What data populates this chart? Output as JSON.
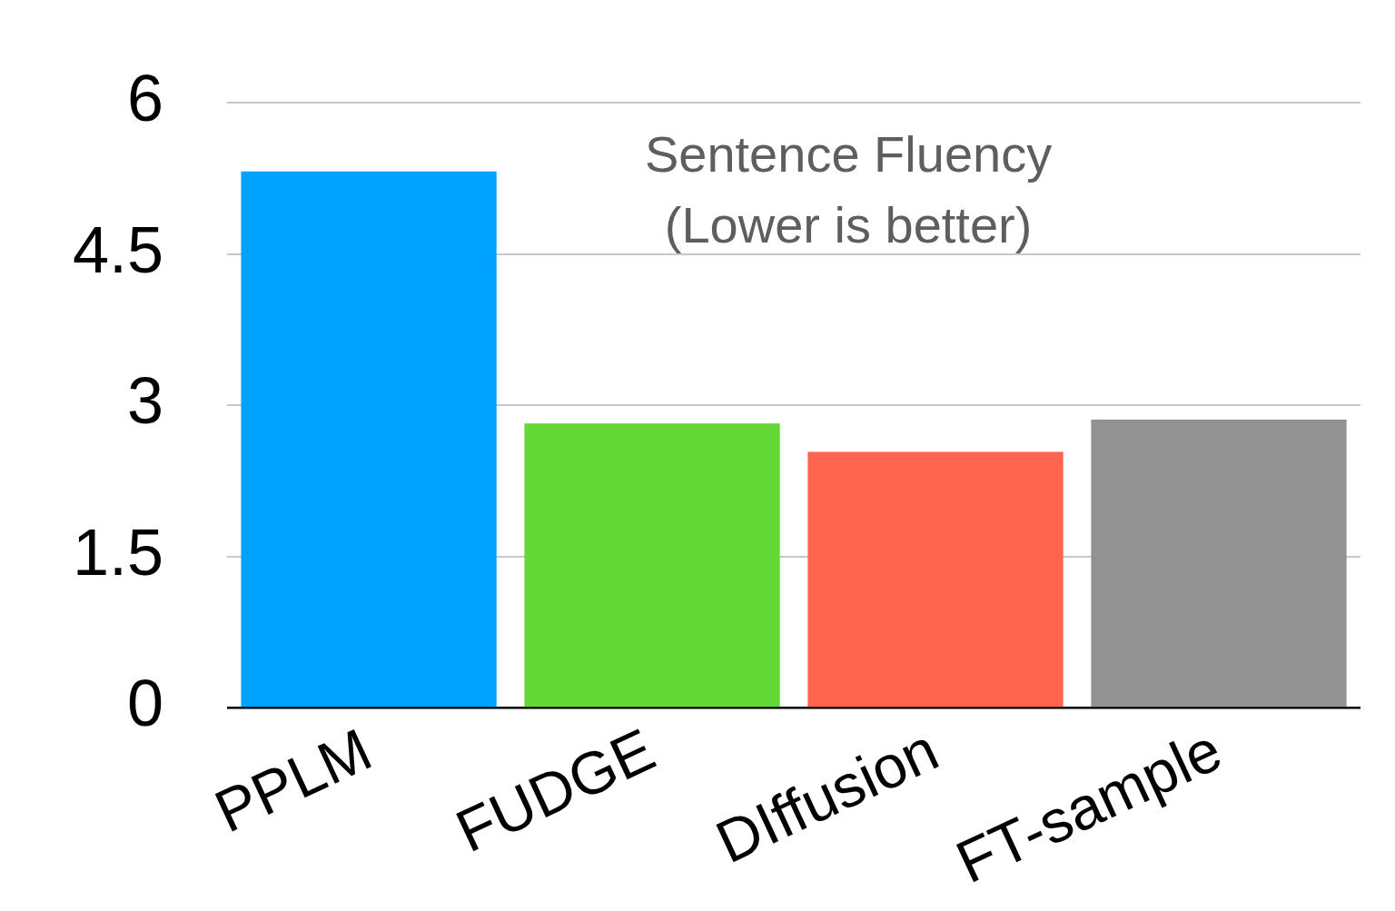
{
  "chart_data": {
    "type": "bar",
    "title": "Sentence Fluency (Lower is better)",
    "categories": [
      "PPLM",
      "FUDGE",
      "DIffusion",
      "FT-sample"
    ],
    "values": [
      5.32,
      2.82,
      2.54,
      2.86
    ],
    "colors": [
      "#00a2ff",
      "#61d836",
      "#ff644e",
      "#929292"
    ],
    "ylim": [
      0,
      6
    ],
    "yticks": [
      0,
      1.5,
      3,
      4.5,
      6
    ],
    "grid": "y",
    "legend": false
  }
}
